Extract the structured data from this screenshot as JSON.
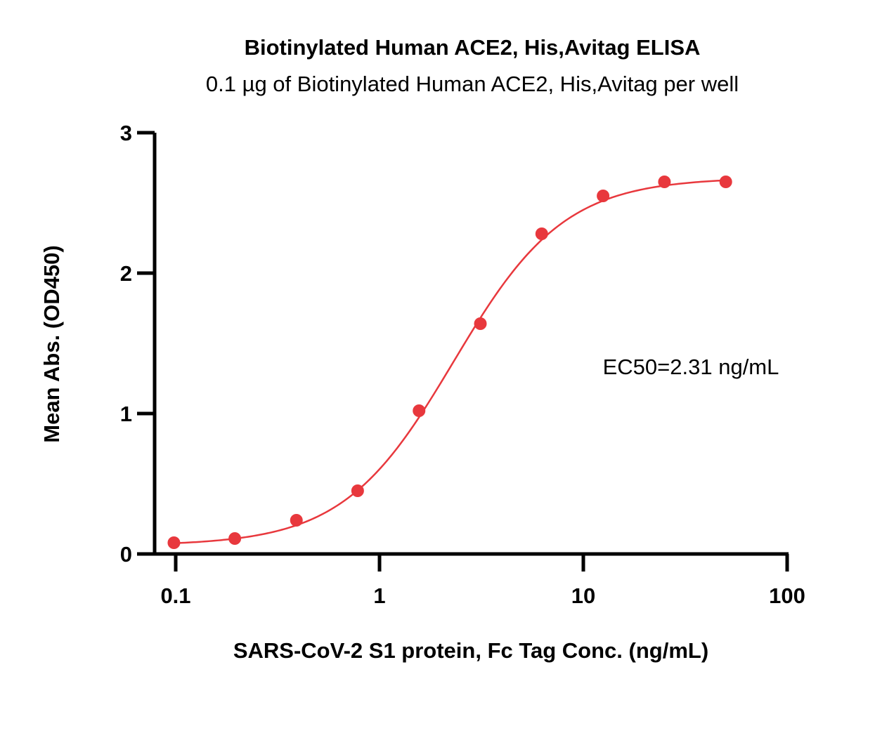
{
  "chart_data": {
    "type": "scatter",
    "title": "Biotinylated Human ACE2, His,Avitag ELISA",
    "subtitle": "0.1 µg of Biotinylated Human ACE2, His,Avitag per well",
    "xlabel": "SARS-CoV-2 S1 protein, Fc Tag Conc. (ng/mL)",
    "ylabel": "Mean Abs. (OD450)",
    "xscale": "log",
    "xlim": [
      0.075,
      100
    ],
    "ylim": [
      0,
      3
    ],
    "xticks": [
      0.1,
      1,
      10,
      100
    ],
    "xtick_labels": [
      "0.1",
      "1",
      "10",
      "100"
    ],
    "yticks": [
      0,
      1,
      2,
      3
    ],
    "ytick_labels": [
      "0",
      "1",
      "2",
      "3"
    ],
    "grid": false,
    "series": [
      {
        "x": [
          0.098,
          0.195,
          0.391,
          0.781,
          1.563,
          3.125,
          6.25,
          12.5,
          25,
          50
        ],
        "y": [
          0.08,
          0.11,
          0.24,
          0.45,
          1.02,
          1.64,
          2.28,
          2.55,
          2.65,
          2.65
        ],
        "color": "#e8383d",
        "fit": "4PL"
      }
    ],
    "fit_curve": {
      "bottom": 0.06,
      "top": 2.68,
      "ec50": 2.31,
      "hill": 1.6
    },
    "annotations": [
      {
        "text": "EC50=2.31 ng/mL"
      }
    ]
  }
}
